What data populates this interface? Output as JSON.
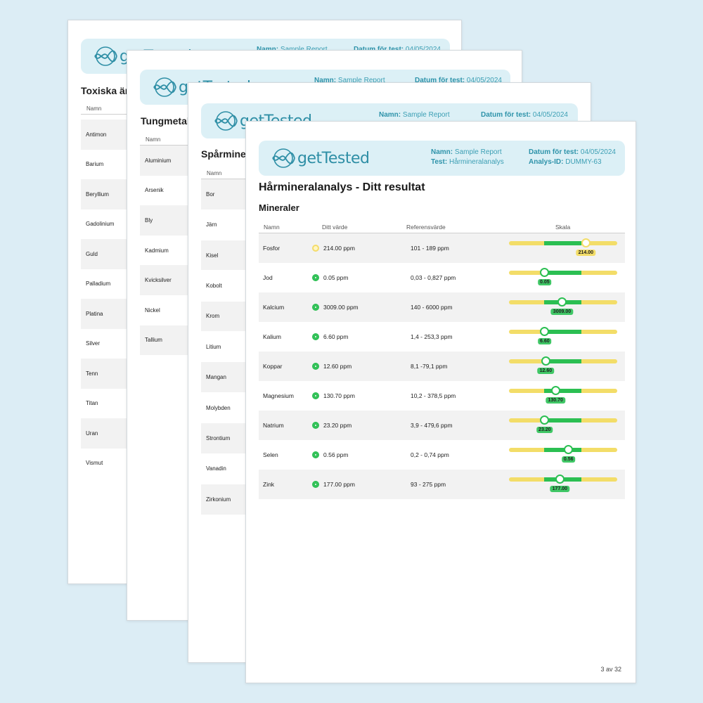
{
  "brand": {
    "logo_text": "getTested",
    "color": "#2f8fa6",
    "banner_color": "#dcf0f6"
  },
  "pages": {
    "p1": {
      "header": {
        "name_label": "Namn:",
        "name_value": "Sample Report",
        "date_label": "Datum för test:",
        "date_value": "04/05/2024"
      },
      "section_title": "Toxiska ämnen",
      "col_name": "Namn",
      "rows": [
        "Antimon",
        "Barium",
        "Beryllium",
        "Gadolinium",
        "Guld",
        "Palladium",
        "Platina",
        "Silver",
        "Tenn",
        "Titan",
        "Uran",
        "Vismut"
      ]
    },
    "p2": {
      "header": {
        "name_label": "Namn:",
        "name_value": "Sample Report",
        "date_label": "Datum för test:",
        "date_value": "04/05/2024"
      },
      "section_title": "Tungmetaller",
      "col_name": "Namn",
      "rows": [
        "Aluminium",
        "Arsenik",
        "Bly",
        "Kadmium",
        "Kvicksilver",
        "Nickel",
        "Tallium"
      ]
    },
    "p3": {
      "header": {
        "name_label": "Namn:",
        "name_value": "Sample Report",
        "date_label": "Datum för test:",
        "date_value": "04/05/2024"
      },
      "section_title": "Spårmineraler",
      "col_name": "Namn",
      "rows": [
        "Bor",
        "Järn",
        "Kisel",
        "Kobolt",
        "Krom",
        "Litium",
        "Mangan",
        "Molybden",
        "Strontium",
        "Vanadin",
        "Zirkonium"
      ]
    },
    "p4": {
      "header": {
        "name_label": "Namn:",
        "name_value": "Sample Report",
        "test_label": "Test:",
        "test_value": "Hårmineralanalys",
        "date_label": "Datum för test:",
        "date_value": "04/05/2024",
        "id_label": "Analys-ID:",
        "id_value": "DUMMY-63"
      },
      "title": "Hårmineralanalys - Ditt resultat",
      "subtitle": "Mineraler",
      "columns": {
        "name": "Namn",
        "value": "Ditt värde",
        "reference": "Referensvärde",
        "scale": "Skala"
      },
      "rows": [
        {
          "name": "Fosfor",
          "value": "214.00 ppm",
          "reference": "101 - 189 ppm",
          "tag": "214.00",
          "status": "warn",
          "level": 0.71
        },
        {
          "name": "Jod",
          "value": "0.05 ppm",
          "reference": "0,03 - 0,827 ppm",
          "tag": "0.05",
          "status": "ok",
          "level": 0.33
        },
        {
          "name": "Kalcium",
          "value": "3009.00 ppm",
          "reference": "140 - 6000 ppm",
          "tag": "3009.00",
          "status": "ok",
          "level": 0.49
        },
        {
          "name": "Kalium",
          "value": "6.60 ppm",
          "reference": "1,4 - 253,3 ppm",
          "tag": "6.60",
          "status": "ok",
          "level": 0.33
        },
        {
          "name": "Koppar",
          "value": "12.60 ppm",
          "reference": "8,1 -79,1 ppm",
          "tag": "12.60",
          "status": "ok",
          "level": 0.34
        },
        {
          "name": "Magnesium",
          "value": "130.70 ppm",
          "reference": "10,2 - 378,5 ppm",
          "tag": "130.70",
          "status": "ok",
          "level": 0.43
        },
        {
          "name": "Natrium",
          "value": "23.20 ppm",
          "reference": "3,9 - 479,6 ppm",
          "tag": "23.20",
          "status": "ok",
          "level": 0.33
        },
        {
          "name": "Selen",
          "value": "0.56 ppm",
          "reference": "0,2 - 0,74 ppm",
          "tag": "0.56",
          "status": "ok",
          "level": 0.55
        },
        {
          "name": "Zink",
          "value": "177.00 ppm",
          "reference": "93 - 275 ppm",
          "tag": "177.00",
          "status": "ok",
          "level": 0.47
        }
      ],
      "page_number": "3 av 32"
    }
  },
  "colors": {
    "ok": "#2bbf52",
    "warn": "#f3dd68"
  }
}
